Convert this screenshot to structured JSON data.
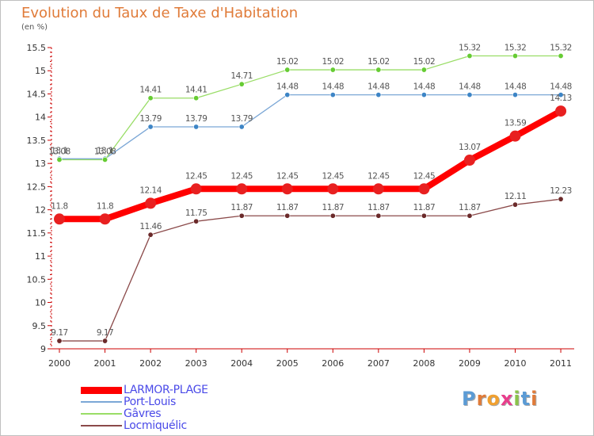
{
  "title": "Evolution du Taux de Taxe d'Habitation",
  "subtitle": "(en %)",
  "logo": {
    "text": "Proxiti",
    "letter_colors": [
      "#5b9bd5",
      "#e07b39",
      "#f0a030",
      "#e83e8c",
      "#8bc34a",
      "#5b9bd5",
      "#e07b39"
    ]
  },
  "chart_data": {
    "type": "line",
    "title": "Evolution du Taux de Taxe d'Habitation",
    "ylabel": "(en %)",
    "xlabel": "",
    "x": [
      "2000",
      "2001",
      "2002",
      "2003",
      "2004",
      "2005",
      "2006",
      "2007",
      "2008",
      "2009",
      "2010",
      "2011"
    ],
    "ylim": [
      9,
      15.5
    ],
    "yticks": [
      "9",
      "9.5",
      "10",
      "10.5",
      "11",
      "11.5",
      "12",
      "12.5",
      "13",
      "13.5",
      "14",
      "14.5",
      "15",
      "15.5"
    ],
    "grid": false,
    "legend_position": "bottom-left",
    "series": [
      {
        "name": "LARMOR-PLAGE",
        "color": "#ff0000",
        "marker": "#e82020",
        "width": 8,
        "radius": 7,
        "values": [
          11.8,
          11.8,
          12.14,
          12.45,
          12.45,
          12.45,
          12.45,
          12.45,
          12.45,
          13.07,
          13.59,
          14.13
        ],
        "labels": [
          "11.8",
          "11.8",
          "12.14",
          "12.45",
          "12.45",
          "12.45",
          "12.45",
          "12.45",
          "12.45",
          "13.07",
          "13.59",
          "14.13"
        ]
      },
      {
        "name": "Port-Louis",
        "color": "#7ba7d6",
        "marker": "#3d85c6",
        "width": 1.3,
        "radius": 3.2,
        "values": [
          13.1,
          13.1,
          13.79,
          13.79,
          13.79,
          14.48,
          14.48,
          14.48,
          14.48,
          14.48,
          14.48,
          14.48
        ],
        "labels": [
          "13.1",
          "13.1",
          "13.79",
          "13.79",
          "13.79",
          "14.48",
          "14.48",
          "14.48",
          "14.48",
          "14.48",
          "14.48",
          "14.48"
        ]
      },
      {
        "name": "Gâvres",
        "color": "#99dd66",
        "marker": "#66cc33",
        "width": 1.3,
        "radius": 3.2,
        "values": [
          13.08,
          13.08,
          14.41,
          14.41,
          14.71,
          15.02,
          15.02,
          15.02,
          15.02,
          15.32,
          15.32,
          15.32
        ],
        "labels": [
          "13.08",
          "13.08",
          "14.41",
          "14.41",
          "14.71",
          "15.02",
          "15.02",
          "15.02",
          "15.02",
          "15.32",
          "15.32",
          "15.32"
        ]
      },
      {
        "name": "Locmiquélic",
        "color": "#8b4a4a",
        "marker": "#6b2a2a",
        "width": 1.3,
        "radius": 3.2,
        "values": [
          9.17,
          9.17,
          11.46,
          11.75,
          11.87,
          11.87,
          11.87,
          11.87,
          11.87,
          11.87,
          12.11,
          12.23
        ],
        "labels": [
          "9.17",
          "9.17",
          "11.46",
          "11.75",
          "11.87",
          "11.87",
          "11.87",
          "11.87",
          "11.87",
          "11.87",
          "12.11",
          "12.23"
        ]
      }
    ]
  }
}
